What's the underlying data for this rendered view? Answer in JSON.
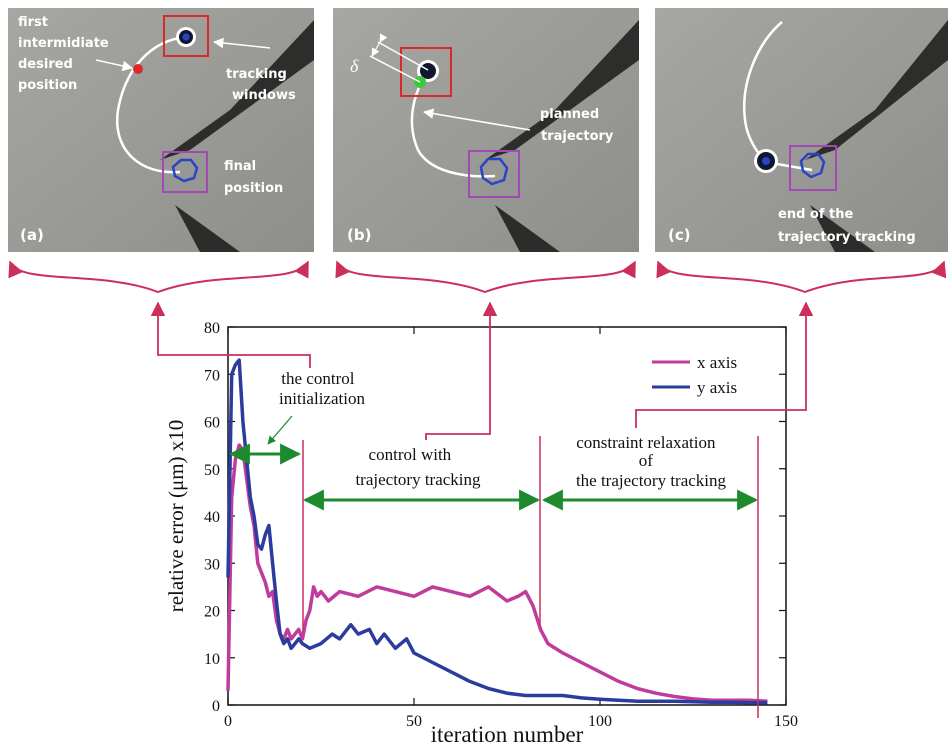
{
  "figure": {
    "panels": [
      {
        "label": "(a)",
        "annotations": [
          {
            "id": "first-intermediate",
            "lines": [
              "first",
              "intermidiate",
              "desired",
              "position"
            ]
          },
          {
            "id": "tracking-windows",
            "lines": [
              "tracking",
              "windows"
            ]
          },
          {
            "id": "final-position",
            "lines": [
              "final",
              "position"
            ]
          }
        ]
      },
      {
        "label": "(b)",
        "annotations": [
          {
            "id": "planned-trajectory",
            "lines": [
              "planned",
              "trajectory"
            ]
          },
          {
            "id": "delta",
            "lines": [
              "δ"
            ]
          }
        ]
      },
      {
        "label": "(c)",
        "annotations": [
          {
            "id": "end-of-tracking",
            "lines": [
              "end of the",
              "trajectory tracking"
            ]
          }
        ]
      }
    ],
    "phase_annotations": [
      {
        "id": "control-init",
        "lines": [
          "the control",
          "initialization"
        ],
        "x_start": 0,
        "x_end": 20
      },
      {
        "id": "trajectory-tracking",
        "lines": [
          "control with",
          "trajectory tracking"
        ],
        "x_start": 20,
        "x_end": 83
      },
      {
        "id": "relaxation",
        "lines": [
          "constraint relaxation",
          "of",
          "the trajectory tracking"
        ],
        "x_start": 83,
        "x_end": 142
      }
    ],
    "colors": {
      "x_series": "#c03c9c",
      "y_series": "#2c3c9c",
      "phase_arrow": "#1e8a2e",
      "bracket": "#cc2f5a",
      "panel_bg": "#9c9c98",
      "red_window": "#d92a2a",
      "purple_window": "#a24ab4",
      "trajectory": "#ffffff",
      "target_blue": "#2a44c8"
    }
  },
  "chart_data": {
    "type": "line",
    "xlabel": "iteration number",
    "ylabel": "relative error (μm) x10",
    "xlim": [
      0,
      150
    ],
    "ylim": [
      0,
      80
    ],
    "xticks": [
      0,
      50,
      100,
      150
    ],
    "yticks": [
      0,
      10,
      20,
      30,
      40,
      50,
      60,
      70,
      80
    ],
    "grid": false,
    "legend_position": "top-right",
    "series": [
      {
        "name": "x axis",
        "color": "#c03c9c",
        "x": [
          0,
          1,
          2,
          3,
          4,
          5,
          6,
          7,
          8,
          9,
          10,
          11,
          12,
          13,
          14,
          15,
          16,
          17,
          18,
          19,
          20,
          21,
          22,
          23,
          24,
          25,
          27,
          30,
          35,
          40,
          45,
          50,
          55,
          60,
          65,
          70,
          75,
          78,
          80,
          82,
          84,
          86,
          90,
          95,
          100,
          105,
          110,
          115,
          120,
          125,
          130,
          135,
          140,
          145
        ],
        "y": [
          3,
          44,
          52,
          55,
          54,
          48,
          42,
          38,
          30,
          28,
          26,
          23,
          24,
          18,
          15,
          14,
          16,
          14,
          15,
          16,
          14,
          18,
          20,
          25,
          23,
          24,
          22,
          24,
          23,
          25,
          24,
          23,
          25,
          24,
          23,
          25,
          22,
          23,
          24,
          21,
          16,
          13,
          11,
          9,
          7,
          5,
          3.5,
          2.5,
          1.8,
          1.3,
          1.0,
          1.0,
          1.0,
          0.8
        ]
      },
      {
        "name": "y axis",
        "color": "#2c3c9c",
        "x": [
          0,
          1,
          2,
          3,
          4,
          5,
          6,
          7,
          8,
          9,
          10,
          11,
          12,
          13,
          14,
          15,
          16,
          17,
          18,
          19,
          20,
          22,
          25,
          28,
          30,
          33,
          35,
          38,
          40,
          42,
          45,
          48,
          50,
          55,
          60,
          65,
          70,
          75,
          80,
          85,
          90,
          95,
          100,
          105,
          110,
          115,
          120,
          125,
          130,
          135,
          140,
          145
        ],
        "y": [
          27,
          70,
          72,
          73,
          60,
          52,
          44,
          40,
          34,
          33,
          36,
          38,
          30,
          22,
          15,
          13,
          14,
          12,
          13,
          14,
          13,
          12,
          13,
          15,
          14,
          17,
          15,
          16,
          13,
          15,
          12,
          14,
          11,
          9,
          7,
          5,
          3.5,
          2.5,
          2,
          2,
          2,
          1.5,
          1.2,
          1.0,
          0.8,
          0.8,
          0.8,
          0.7,
          0.6,
          0.6,
          0.5,
          0.5
        ]
      }
    ]
  }
}
